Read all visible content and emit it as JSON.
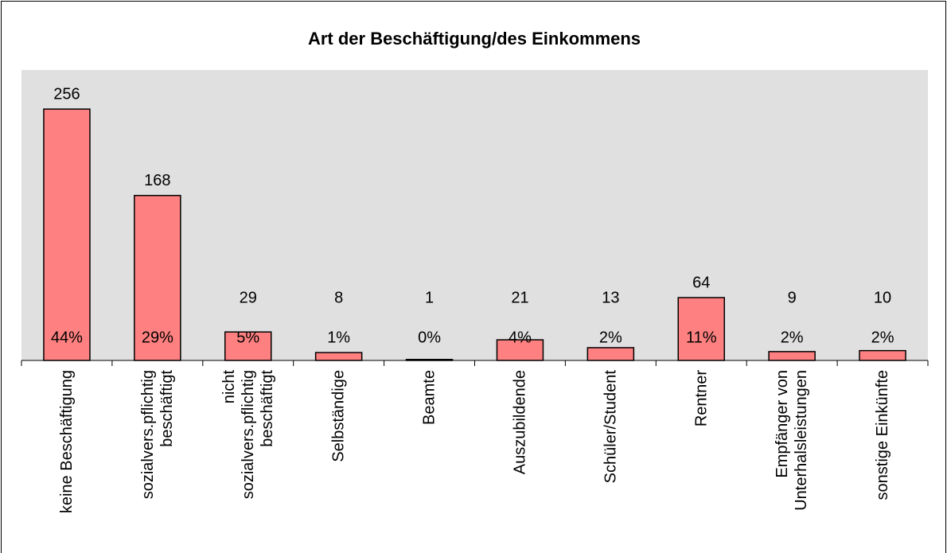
{
  "chart_data": {
    "type": "bar",
    "title": "Art der Beschäftigung/des Einkommens",
    "categories": [
      "keine Beschäftigung",
      "sozialvers.pflichtig\nbeschäftigt",
      "nicht\nsozialvers.pflichtig\nbeschäftigt",
      "Selbständige",
      "Beamte",
      "Auszubildende",
      "Schüler/Student",
      "Rentner",
      "Empfänger von\nUnterhalsleistungen",
      "sonstige Einkünfte"
    ],
    "values": [
      256,
      168,
      29,
      8,
      1,
      21,
      13,
      64,
      9,
      10
    ],
    "percent_labels": [
      "44%",
      "29%",
      "5%",
      "1%",
      "0%",
      "4%",
      "2%",
      "11%",
      "2%",
      "2%"
    ],
    "color": "#ff8080",
    "plot_background": "#e0e0e0"
  }
}
